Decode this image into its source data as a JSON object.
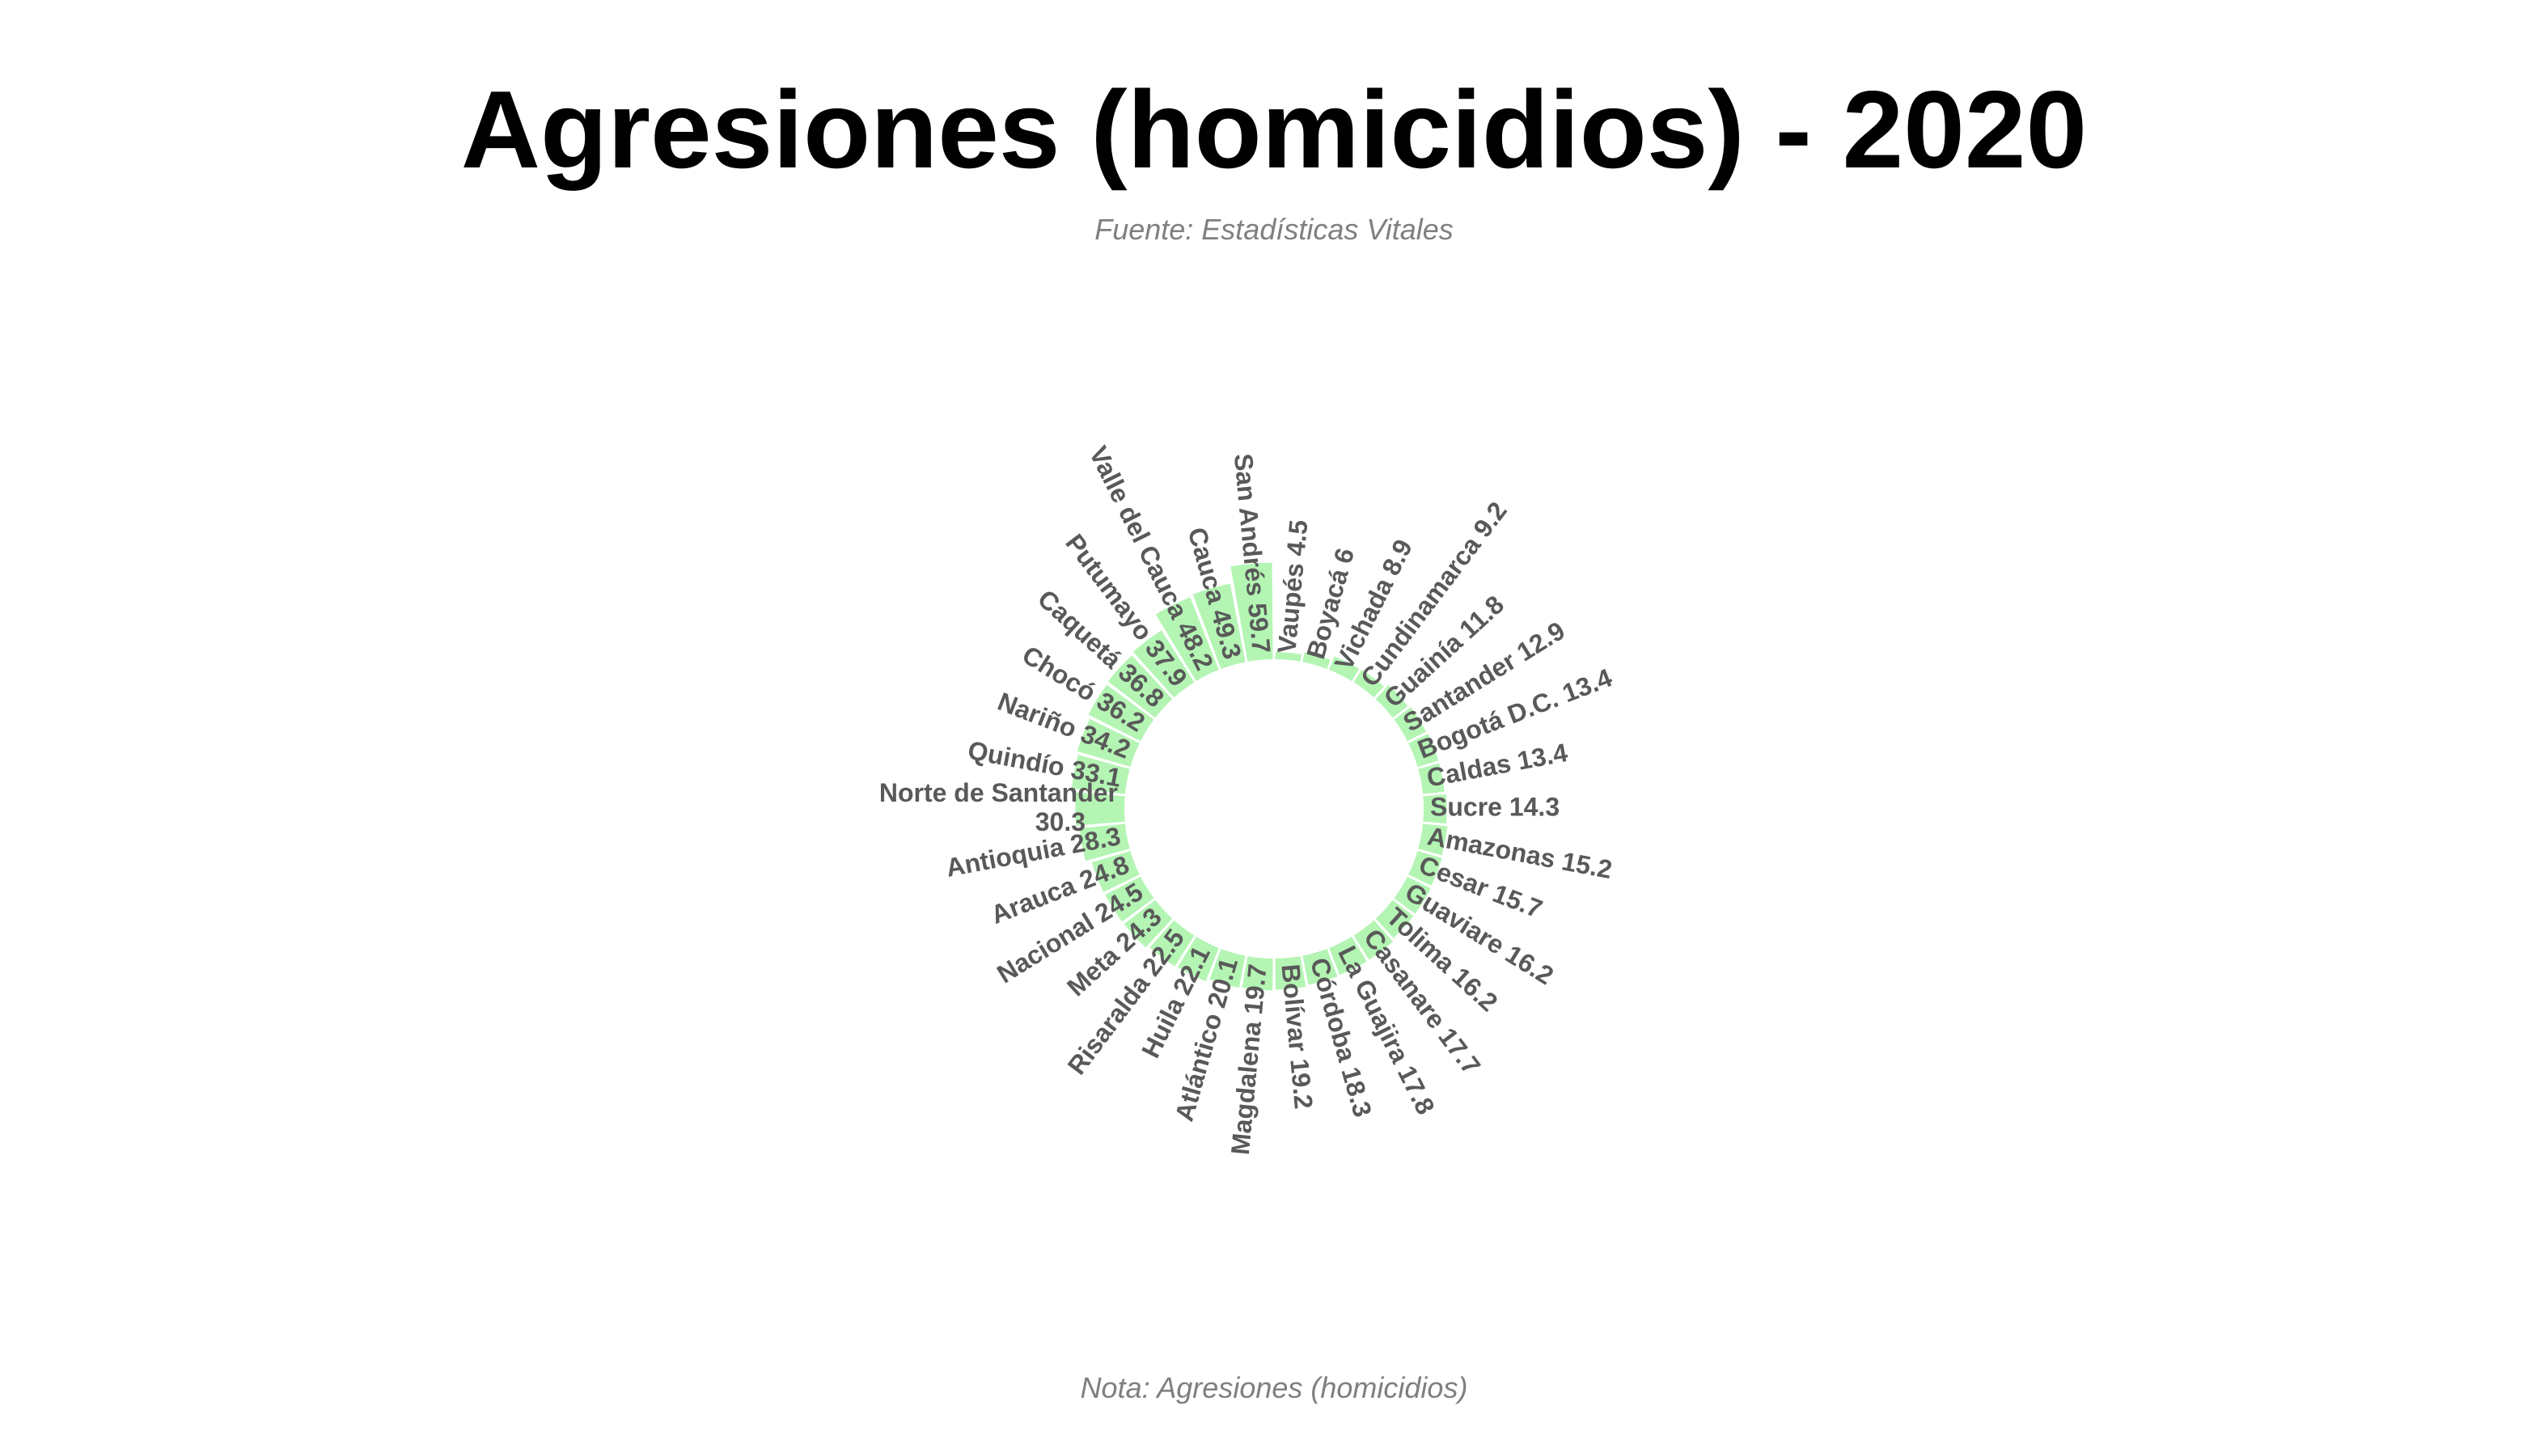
{
  "chart_data": {
    "type": "bar",
    "subtype": "circular-bar",
    "title": "Agresiones (homicidios) - 2020",
    "subtitle": "Fuente: Estadísticas Vitales",
    "caption": "Nota: Agresiones (homicidios)",
    "bar_color": "#b4f5b4",
    "label_color": "#595959",
    "grid": false,
    "legend": "none",
    "categories": [
      "Vaupés",
      "Boyacá",
      "Vichada",
      "Cundinamarca",
      "Guainía",
      "Santander",
      "Bogotá D.C.",
      "Caldas",
      "Sucre",
      "Amazonas",
      "Cesar",
      "Guaviare",
      "Tolima",
      "Casanare",
      "La Guajira",
      "Córdoba",
      "Bolívar",
      "Magdalena",
      "Atlántico",
      "Huila",
      "Risaralda",
      "Meta",
      "Nacional",
      "Arauca",
      "Antioquia",
      "Norte de Santander",
      "Quindío",
      "Nariño",
      "Chocó",
      "Caquetá",
      "Putumayo",
      "Valle del Cauca",
      "Cauca",
      "San Andrés"
    ],
    "values": [
      4.5,
      6,
      8.9,
      9.2,
      11.8,
      12.9,
      13.4,
      13.4,
      14.3,
      15.2,
      15.7,
      16.2,
      16.2,
      17.7,
      17.8,
      18.3,
      19.2,
      19.7,
      20.1,
      22.1,
      22.5,
      24.3,
      24.5,
      24.8,
      28.3,
      30.3,
      33.1,
      34.2,
      36.2,
      36.8,
      37.9,
      48.2,
      49.3,
      59.7
    ],
    "labels": [
      "Vaupés 4.5",
      "Boyacá 6",
      "Vichada 8.9",
      "Cundinamarca 9.2",
      "Guainía 11.8",
      "Santander 12.9",
      "Bogotá D.C. 13.4",
      "Caldas 13.4",
      "Sucre 14.3",
      "Amazonas 15.2",
      "Cesar 15.7",
      "Guaviare 16.2",
      "Tolima 16.2",
      "Casanare 17.7",
      "La Guajira 17.8",
      "Córdoba 18.3",
      "Bolívar 19.2",
      "Magdalena 19.7",
      "Atlántico 20.1",
      "Huila 22.1",
      "Risaralda 22.5",
      "Meta 24.3",
      "Nacional 24.5",
      "Arauca 24.8",
      "Antioquia 28.3",
      "Norte de Santander 30.3",
      "Quindío 33.1",
      "Nariño 34.2",
      "Chocó 36.2",
      "Caquetá 36.8",
      "Putumayo 37.9",
      "Valle del Cauca 48.2",
      "Cauca 49.3",
      "San Andrés 59.7"
    ]
  }
}
